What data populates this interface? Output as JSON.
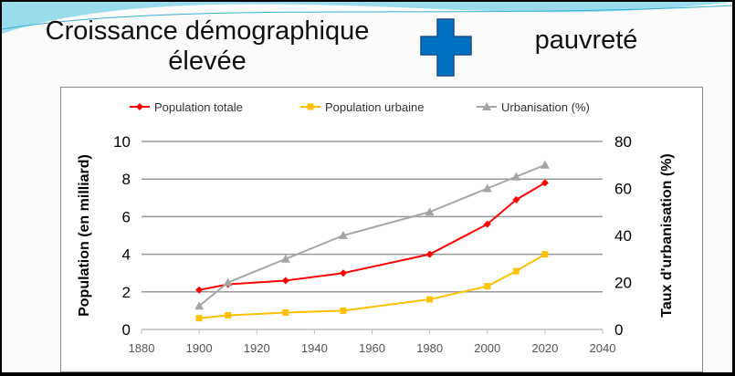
{
  "slide": {
    "title_left": "Croissance démographique élevée",
    "title_left_line1": "Croissance démographique",
    "title_left_line2": "élevée",
    "title_right": "pauvreté",
    "plus_icon": "plus-icon",
    "plus_color": "#0070C0"
  },
  "chart_data": {
    "type": "line",
    "x": [
      1900,
      1910,
      1930,
      1950,
      1980,
      2000,
      2010,
      2020
    ],
    "series": [
      {
        "name": "Population totale",
        "axis": "left",
        "color": "#FF0000",
        "marker": "diamond",
        "values": [
          2.1,
          2.4,
          2.6,
          3.0,
          4.0,
          5.6,
          6.9,
          7.8
        ]
      },
      {
        "name": "Population urbaine",
        "axis": "left",
        "color": "#FFC000",
        "marker": "square",
        "values": [
          0.6,
          0.75,
          0.9,
          1.0,
          1.6,
          2.3,
          3.1,
          4.0
        ]
      },
      {
        "name": "Urbanisation (%)",
        "axis": "right",
        "color": "#A5A5A5",
        "marker": "triangle",
        "values": [
          10,
          20,
          30,
          40,
          50,
          60,
          65,
          70
        ]
      }
    ],
    "xlim": [
      1880,
      2040
    ],
    "xticks": [
      "1880",
      "1900",
      "1920",
      "1940",
      "1960",
      "1980",
      "2000",
      "2020",
      "2040"
    ],
    "ylim": [
      0,
      10
    ],
    "yticks": [
      "0",
      "2",
      "4",
      "6",
      "8",
      "10"
    ],
    "y2lim": [
      0,
      80
    ],
    "y2ticks": [
      "0",
      "20",
      "40",
      "60",
      "80"
    ],
    "ylabel": "Population (en milliard)",
    "y2label": "Taux d'urbanisation (%)",
    "legend": "top",
    "grid": true
  }
}
